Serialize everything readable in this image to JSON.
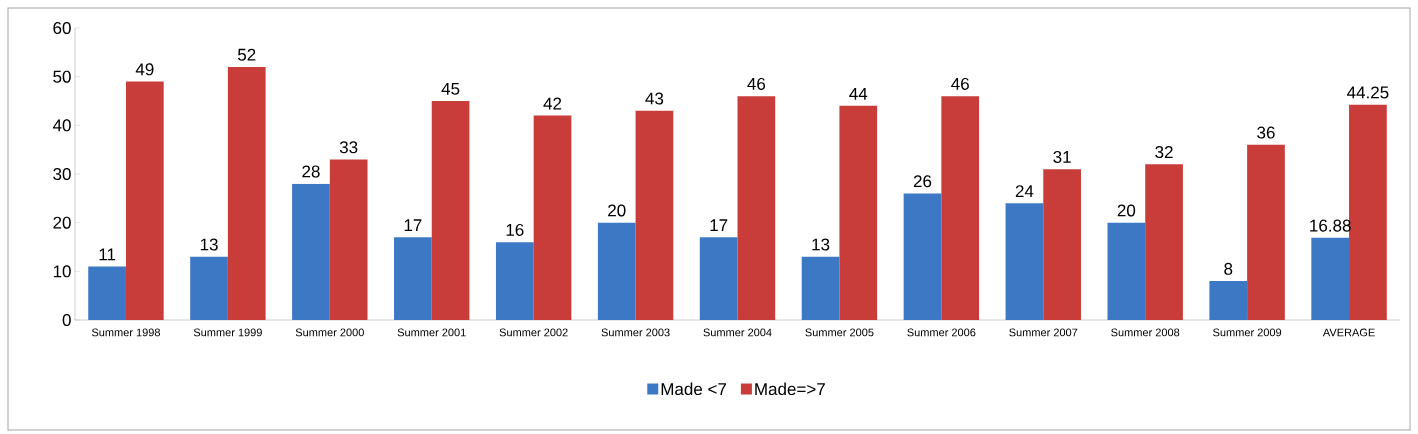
{
  "chart_data": {
    "type": "bar",
    "categories": [
      "Summer 1998",
      "Summer 1999",
      "Summer 2000",
      "Summer 2001",
      "Summer 2002",
      "Summer 2003",
      "Summer 2004",
      "Summer 2005",
      "Summer 2006",
      "Summer 2007",
      "Summer 2008",
      "Summer 2009",
      "AVERAGE"
    ],
    "series": [
      {
        "name": "Made <7",
        "color": "#3d78c4",
        "values": [
          11,
          13,
          28,
          17,
          16,
          20,
          17,
          13,
          26,
          24,
          20,
          8,
          16.88
        ]
      },
      {
        "name": "Made=>7",
        "color": "#c83c39",
        "values": [
          49,
          52,
          33,
          45,
          42,
          43,
          46,
          44,
          46,
          31,
          32,
          36,
          44.25
        ]
      }
    ],
    "ylim": [
      0,
      60
    ],
    "yticks": [
      0,
      10,
      20,
      30,
      40,
      50,
      60
    ],
    "grid": false,
    "legend": "bottom",
    "data_labels": true
  }
}
